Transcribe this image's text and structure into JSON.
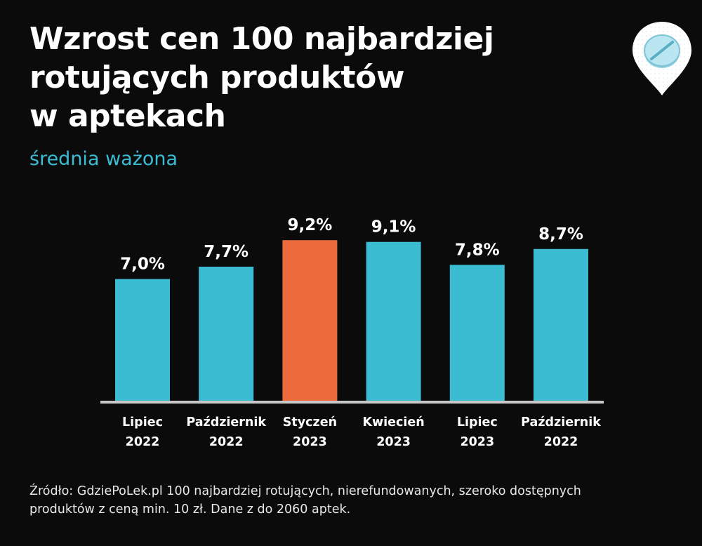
{
  "header": {
    "title_lines": [
      "Wzrost cen 100 najbardziej",
      "rotujących produktów",
      "w aptekach"
    ],
    "subtitle": "średnia ważona"
  },
  "logo": {
    "icon": "pill-location-pin-icon"
  },
  "colors": {
    "background": "#0b0b0c",
    "bar": "#3bbcd3",
    "highlight_bar": "#ec6a3c",
    "subtitle": "#3bbcd3",
    "axis": "#c8c8c8",
    "text": "#ffffff"
  },
  "chart_data": {
    "type": "bar",
    "categories": [
      [
        "Lipiec",
        "2022"
      ],
      [
        "Październik",
        "2022"
      ],
      [
        "Styczeń",
        "2023"
      ],
      [
        "Kwiecień",
        "2023"
      ],
      [
        "Lipiec",
        "2023"
      ],
      [
        "Październik",
        "2022"
      ]
    ],
    "values": [
      7.0,
      7.7,
      9.2,
      9.1,
      7.8,
      8.7
    ],
    "value_labels": [
      "7,0%",
      "7,7%",
      "9,2%",
      "9,1%",
      "7,8%",
      "8,7%"
    ],
    "highlight_index": 2,
    "title": "Wzrost cen 100 najbardziej rotujących produktów w aptekach",
    "subtitle": "średnia ważona",
    "xlabel": "",
    "ylabel": "",
    "y_axis_visible": false,
    "grid": false
  },
  "footer": {
    "source_lines": [
      "Źródło: GdziePoLek.pl 100 najbardziej rotujących, nierefundowanych, szeroko dostępnych",
      "produktów z ceną min. 10 zł. Dane z do 2060 aptek."
    ]
  }
}
